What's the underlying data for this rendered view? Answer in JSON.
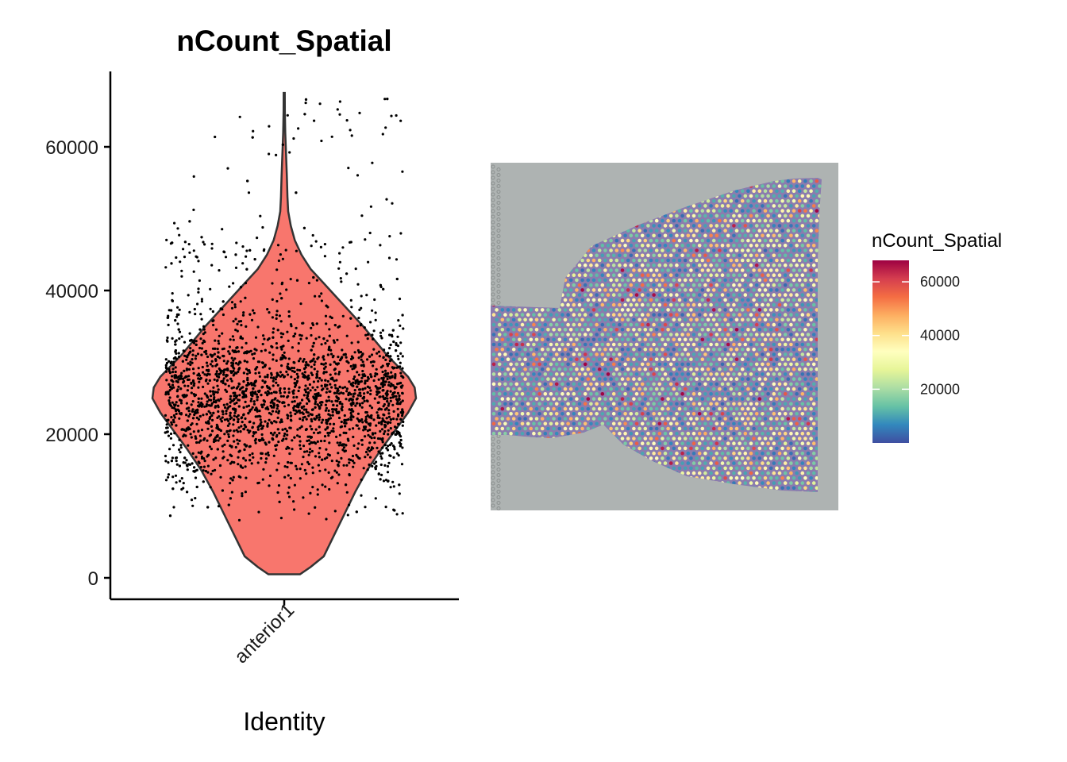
{
  "chart_data": [
    {
      "type": "violin",
      "title": "nCount_Spatial",
      "xlabel": "Identity",
      "ylabel": "",
      "categories": [
        "anterior1"
      ],
      "ylim": [
        -3000,
        70000
      ],
      "yticks": [
        0,
        20000,
        40000,
        60000
      ],
      "ytick_labels": [
        "0",
        "20000",
        "40000",
        "60000"
      ],
      "violin_fill": "#F8766D",
      "violin_stroke": "#333333",
      "point_color": "#000000",
      "violin_profile": {
        "y": [
          500,
          1500,
          3000,
          6000,
          9000,
          12000,
          15000,
          18000,
          21000,
          23000,
          25000,
          26500,
          28000,
          29500,
          31000,
          33000,
          35000,
          37000,
          39000,
          41000,
          43000,
          45000,
          47000,
          49000,
          51000,
          53000,
          56000,
          59000,
          62000,
          65000,
          67500
        ],
        "half_width_fraction": [
          0.12,
          0.2,
          0.3,
          0.38,
          0.46,
          0.54,
          0.63,
          0.74,
          0.86,
          0.94,
          1.0,
          0.99,
          0.94,
          0.86,
          0.78,
          0.69,
          0.6,
          0.5,
          0.4,
          0.3,
          0.2,
          0.13,
          0.08,
          0.05,
          0.03,
          0.025,
          0.02,
          0.014,
          0.008,
          0.005,
          0.004
        ]
      },
      "points": {
        "count": 2700,
        "description": "jittered spots per sample, densest 15000-35000",
        "y_min": 500,
        "y_max": 67000
      }
    },
    {
      "type": "spatial_feature",
      "title": "",
      "legend": {
        "title": "nCount_Spatial",
        "range": [
          0,
          68000
        ],
        "ticks": [
          20000,
          40000,
          60000
        ],
        "tick_labels": [
          "20000",
          "40000",
          "60000"
        ],
        "colors": [
          "#3F4EA1",
          "#3288BD",
          "#66C2A5",
          "#ABDDA4",
          "#E6F598",
          "#FFFFBF",
          "#FEE08B",
          "#FDAE61",
          "#F46D43",
          "#D53E4F",
          "#9E0142"
        ]
      },
      "background_color": "#AEB3B2"
    }
  ]
}
